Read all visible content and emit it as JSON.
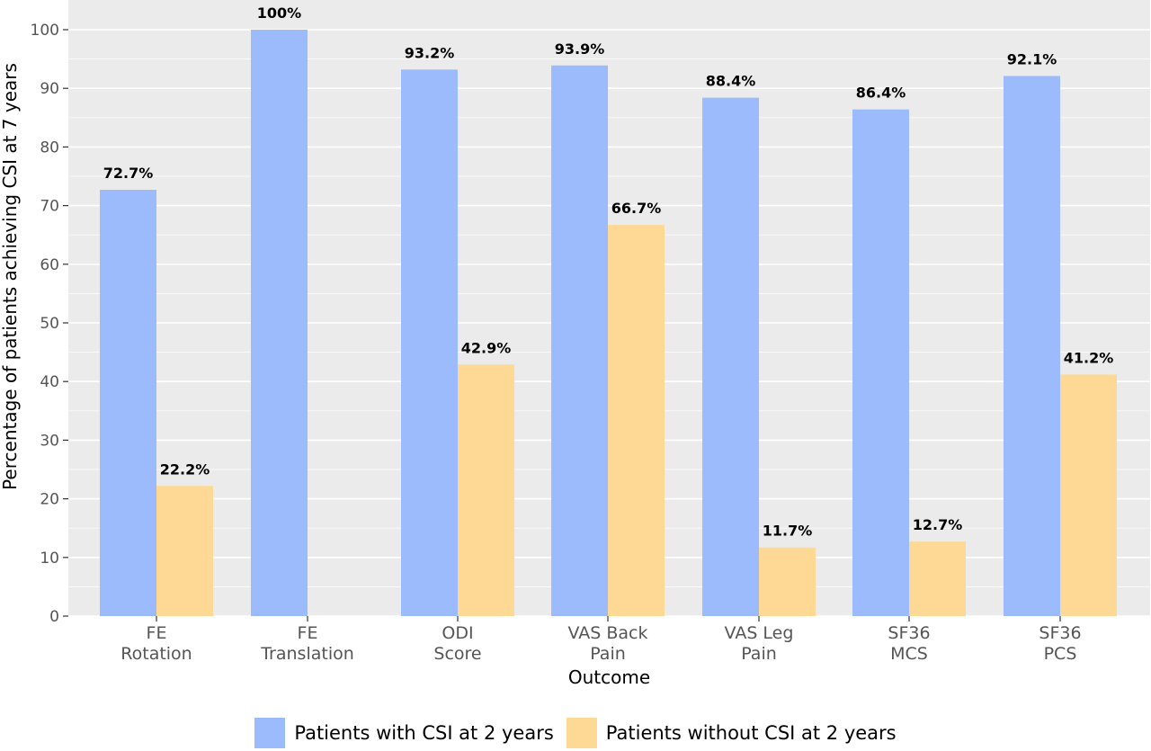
{
  "chart_data": {
    "type": "bar",
    "categories": [
      [
        "FE",
        "Rotation"
      ],
      [
        "FE",
        "Translation"
      ],
      [
        "ODI",
        "Score"
      ],
      [
        "VAS Back",
        "Pain"
      ],
      [
        "VAS Leg",
        "Pain"
      ],
      [
        "SF36",
        "MCS"
      ],
      [
        "SF36",
        "PCS"
      ]
    ],
    "series": [
      {
        "name": "Patients with CSI at 2 years",
        "color": "#9bbbfc",
        "values": [
          72.7,
          100,
          93.2,
          93.9,
          88.4,
          86.4,
          92.1
        ],
        "labels": [
          "72.7%",
          "100%",
          "93.2%",
          "93.9%",
          "88.4%",
          "86.4%",
          "92.1%"
        ]
      },
      {
        "name": "Patients without CSI at 2 years",
        "color": "#fdd995",
        "values": [
          22.2,
          null,
          42.9,
          66.7,
          11.7,
          12.7,
          41.2
        ],
        "labels": [
          "22.2%",
          "",
          "42.9%",
          "66.7%",
          "11.7%",
          "12.7%",
          "41.2%"
        ]
      }
    ],
    "xlabel": "Outcome",
    "ylabel": "Percentage of patients achieving CSI at 7 years",
    "ylim": [
      0,
      100
    ],
    "yticks": [
      0,
      10,
      20,
      30,
      40,
      50,
      60,
      70,
      80,
      90,
      100
    ],
    "grid": true,
    "legend_position": "bottom",
    "panel_color": "#ebebeb",
    "grid_color": "#ffffff"
  }
}
